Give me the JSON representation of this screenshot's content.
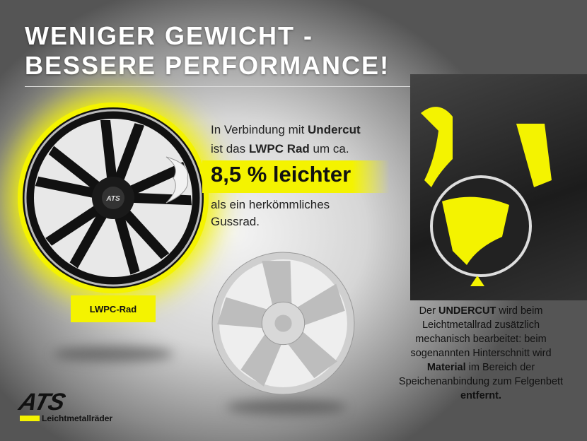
{
  "title": {
    "line1": "WENIGER GEWICHT -",
    "line2": "BESSERE PERFORMANCE!"
  },
  "intro": {
    "p1": "In Verbindung mit ",
    "b1": "Undercut",
    "p2": "ist das ",
    "b2": "LWPC Rad",
    "p3": " um ca."
  },
  "highlight": "8,5 % leichter",
  "outro": {
    "line1": "als ein herkömmliches",
    "line2": "Gussrad."
  },
  "wheel_label": "LWPC-Rad",
  "hub_logo": "ATS",
  "description": {
    "p1": "Der ",
    "b1": "UNDERCUT",
    "p2": " wird beim Leichtmetallrad zusätzlich mechanisch bearbeitet: beim sogenannten Hinterschnitt wird ",
    "b2": "Material",
    "p3": " im Bereich der Speichenanbindung zum Felgenbett ",
    "b3": "entfernt."
  },
  "logo": {
    "brand": "ATS",
    "tagline": "Leichtmetallräder"
  },
  "colors": {
    "accent": "#f4f300",
    "text": "#111111"
  }
}
